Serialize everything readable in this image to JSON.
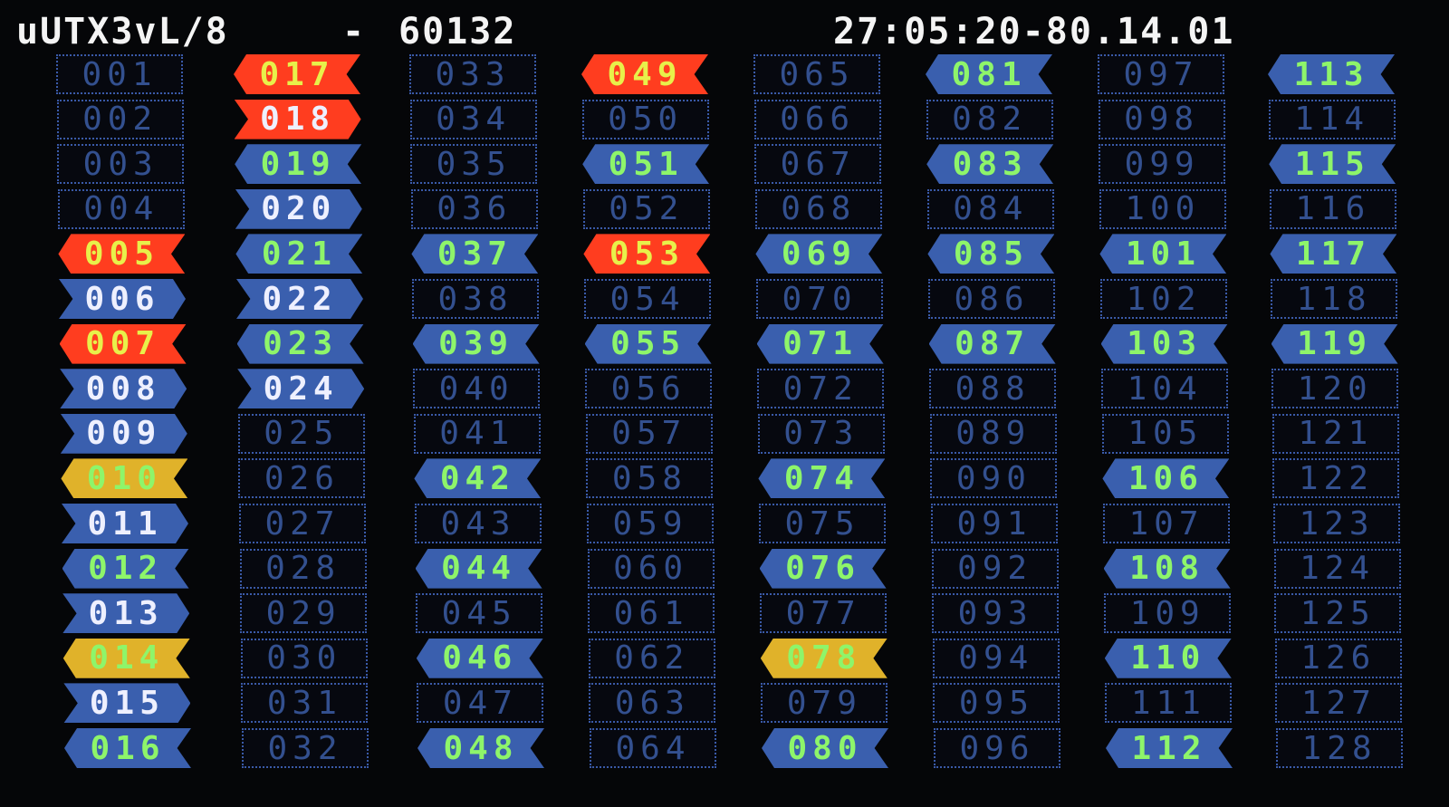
{
  "header": {
    "title": "uUTX3vL/8",
    "separator": "-",
    "code": "60132",
    "clock": "27:05:20-80.14.01"
  },
  "colors": {
    "red": "#ff3d1f",
    "blue": "#3a5fae",
    "yellow": "#e0b22a",
    "text_yellow": "#e8f04a",
    "text_green": "#8ef56a",
    "text_white": "#eef0ff",
    "empty_text": "#33508f"
  },
  "state_styles": {
    "red-left": {
      "bg": "red",
      "text": "text_yellow",
      "arrow": "left"
    },
    "red-right": {
      "bg": "red",
      "text": "text_white",
      "arrow": "right"
    },
    "blue-left": {
      "bg": "blue",
      "text": "text_green",
      "arrow": "left"
    },
    "blue-right": {
      "bg": "blue",
      "text": "text_white",
      "arrow": "right"
    },
    "yellow-left": {
      "bg": "yellow",
      "text": "text_green",
      "arrow": "left"
    },
    "empty": {
      "bg": null,
      "text": "empty_text",
      "arrow": "none"
    }
  },
  "cells": [
    {
      "label": "001",
      "state": "empty"
    },
    {
      "label": "002",
      "state": "empty"
    },
    {
      "label": "003",
      "state": "empty"
    },
    {
      "label": "004",
      "state": "empty"
    },
    {
      "label": "005",
      "state": "red-left"
    },
    {
      "label": "006",
      "state": "blue-right"
    },
    {
      "label": "007",
      "state": "red-left"
    },
    {
      "label": "008",
      "state": "blue-right"
    },
    {
      "label": "009",
      "state": "blue-right"
    },
    {
      "label": "010",
      "state": "yellow-left"
    },
    {
      "label": "011",
      "state": "blue-right"
    },
    {
      "label": "012",
      "state": "blue-left"
    },
    {
      "label": "013",
      "state": "blue-right"
    },
    {
      "label": "014",
      "state": "yellow-left"
    },
    {
      "label": "015",
      "state": "blue-right"
    },
    {
      "label": "016",
      "state": "blue-left"
    },
    {
      "label": "017",
      "state": "red-left"
    },
    {
      "label": "018",
      "state": "red-right"
    },
    {
      "label": "019",
      "state": "blue-left"
    },
    {
      "label": "020",
      "state": "blue-right"
    },
    {
      "label": "021",
      "state": "blue-left"
    },
    {
      "label": "022",
      "state": "blue-right"
    },
    {
      "label": "023",
      "state": "blue-left"
    },
    {
      "label": "024",
      "state": "blue-right"
    },
    {
      "label": "025",
      "state": "empty"
    },
    {
      "label": "026",
      "state": "empty"
    },
    {
      "label": "027",
      "state": "empty"
    },
    {
      "label": "028",
      "state": "empty"
    },
    {
      "label": "029",
      "state": "empty"
    },
    {
      "label": "030",
      "state": "empty"
    },
    {
      "label": "031",
      "state": "empty"
    },
    {
      "label": "032",
      "state": "empty"
    },
    {
      "label": "033",
      "state": "empty"
    },
    {
      "label": "034",
      "state": "empty"
    },
    {
      "label": "035",
      "state": "empty"
    },
    {
      "label": "036",
      "state": "empty"
    },
    {
      "label": "037",
      "state": "blue-left"
    },
    {
      "label": "038",
      "state": "empty"
    },
    {
      "label": "039",
      "state": "blue-left"
    },
    {
      "label": "040",
      "state": "empty"
    },
    {
      "label": "041",
      "state": "empty"
    },
    {
      "label": "042",
      "state": "blue-left"
    },
    {
      "label": "043",
      "state": "empty"
    },
    {
      "label": "044",
      "state": "blue-left"
    },
    {
      "label": "045",
      "state": "empty"
    },
    {
      "label": "046",
      "state": "blue-left"
    },
    {
      "label": "047",
      "state": "empty"
    },
    {
      "label": "048",
      "state": "blue-left"
    },
    {
      "label": "049",
      "state": "red-left"
    },
    {
      "label": "050",
      "state": "empty"
    },
    {
      "label": "051",
      "state": "blue-left"
    },
    {
      "label": "052",
      "state": "empty"
    },
    {
      "label": "053",
      "state": "red-left"
    },
    {
      "label": "054",
      "state": "empty"
    },
    {
      "label": "055",
      "state": "blue-left"
    },
    {
      "label": "056",
      "state": "empty"
    },
    {
      "label": "057",
      "state": "empty"
    },
    {
      "label": "058",
      "state": "empty"
    },
    {
      "label": "059",
      "state": "empty"
    },
    {
      "label": "060",
      "state": "empty"
    },
    {
      "label": "061",
      "state": "empty"
    },
    {
      "label": "062",
      "state": "empty"
    },
    {
      "label": "063",
      "state": "empty"
    },
    {
      "label": "064",
      "state": "empty"
    },
    {
      "label": "065",
      "state": "empty"
    },
    {
      "label": "066",
      "state": "empty"
    },
    {
      "label": "067",
      "state": "empty"
    },
    {
      "label": "068",
      "state": "empty"
    },
    {
      "label": "069",
      "state": "blue-left"
    },
    {
      "label": "070",
      "state": "empty"
    },
    {
      "label": "071",
      "state": "blue-left"
    },
    {
      "label": "072",
      "state": "empty"
    },
    {
      "label": "073",
      "state": "empty"
    },
    {
      "label": "074",
      "state": "blue-left"
    },
    {
      "label": "075",
      "state": "empty"
    },
    {
      "label": "076",
      "state": "blue-left"
    },
    {
      "label": "077",
      "state": "empty"
    },
    {
      "label": "078",
      "state": "yellow-left"
    },
    {
      "label": "079",
      "state": "empty"
    },
    {
      "label": "080",
      "state": "blue-left"
    },
    {
      "label": "081",
      "state": "blue-left"
    },
    {
      "label": "082",
      "state": "empty"
    },
    {
      "label": "083",
      "state": "blue-left"
    },
    {
      "label": "084",
      "state": "empty"
    },
    {
      "label": "085",
      "state": "blue-left"
    },
    {
      "label": "086",
      "state": "empty"
    },
    {
      "label": "087",
      "state": "blue-left"
    },
    {
      "label": "088",
      "state": "empty"
    },
    {
      "label": "089",
      "state": "empty"
    },
    {
      "label": "090",
      "state": "empty"
    },
    {
      "label": "091",
      "state": "empty"
    },
    {
      "label": "092",
      "state": "empty"
    },
    {
      "label": "093",
      "state": "empty"
    },
    {
      "label": "094",
      "state": "empty"
    },
    {
      "label": "095",
      "state": "empty"
    },
    {
      "label": "096",
      "state": "empty"
    },
    {
      "label": "097",
      "state": "empty"
    },
    {
      "label": "098",
      "state": "empty"
    },
    {
      "label": "099",
      "state": "empty"
    },
    {
      "label": "100",
      "state": "empty"
    },
    {
      "label": "101",
      "state": "blue-left"
    },
    {
      "label": "102",
      "state": "empty"
    },
    {
      "label": "103",
      "state": "blue-left"
    },
    {
      "label": "104",
      "state": "empty"
    },
    {
      "label": "105",
      "state": "empty"
    },
    {
      "label": "106",
      "state": "blue-left"
    },
    {
      "label": "107",
      "state": "empty"
    },
    {
      "label": "108",
      "state": "blue-left"
    },
    {
      "label": "109",
      "state": "empty"
    },
    {
      "label": "110",
      "state": "blue-left"
    },
    {
      "label": "111",
      "state": "empty"
    },
    {
      "label": "112",
      "state": "blue-left"
    },
    {
      "label": "113",
      "state": "blue-left"
    },
    {
      "label": "114",
      "state": "empty"
    },
    {
      "label": "115",
      "state": "blue-left"
    },
    {
      "label": "116",
      "state": "empty"
    },
    {
      "label": "117",
      "state": "blue-left"
    },
    {
      "label": "118",
      "state": "empty"
    },
    {
      "label": "119",
      "state": "blue-left"
    },
    {
      "label": "120",
      "state": "empty"
    },
    {
      "label": "121",
      "state": "empty"
    },
    {
      "label": "122",
      "state": "empty"
    },
    {
      "label": "123",
      "state": "empty"
    },
    {
      "label": "124",
      "state": "empty"
    },
    {
      "label": "125",
      "state": "empty"
    },
    {
      "label": "126",
      "state": "empty"
    },
    {
      "label": "127",
      "state": "empty"
    },
    {
      "label": "128",
      "state": "empty"
    }
  ]
}
